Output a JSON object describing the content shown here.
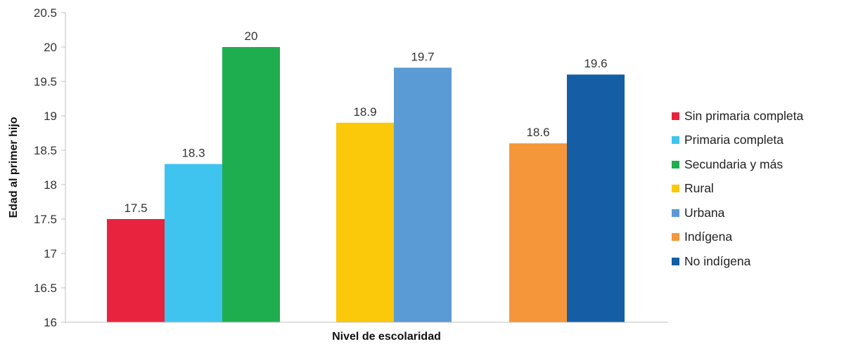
{
  "chart_data": {
    "type": "bar",
    "title": "",
    "xlabel": "Nivel de escolaridad",
    "ylabel": "Edad al primer hijo",
    "ylim": [
      16,
      20.5
    ],
    "yticks": [
      "16",
      "16.5",
      "17",
      "17.5",
      "18",
      "18.5",
      "19",
      "19.5",
      "20",
      "20.5"
    ],
    "grid": false,
    "legend_position": "right",
    "groups": [
      {
        "bars": [
          {
            "name": "Sin primaria completa",
            "value": 17.5,
            "label": "17.5",
            "color": "#e8233e"
          },
          {
            "name": "Primaria completa",
            "value": 18.3,
            "label": "18.3",
            "color": "#3ec4ef"
          },
          {
            "name": "Secundaria y más",
            "value": 20,
            "label": "20",
            "color": "#1fae4f"
          }
        ]
      },
      {
        "bars": [
          {
            "name": "Rural",
            "value": 18.9,
            "label": "18.9",
            "color": "#fbc80a"
          },
          {
            "name": "Urbana",
            "value": 19.7,
            "label": "19.7",
            "color": "#5b9bd5"
          }
        ]
      },
      {
        "bars": [
          {
            "name": "Indígena",
            "value": 18.6,
            "label": "18.6",
            "color": "#f6963a"
          },
          {
            "name": "No indígena",
            "value": 19.6,
            "label": "19.6",
            "color": "#155ea5"
          }
        ]
      }
    ],
    "legend": [
      {
        "label": "Sin primaria completa",
        "color": "#e8233e"
      },
      {
        "label": "Primaria completa",
        "color": "#3ec4ef"
      },
      {
        "label": "Secundaria y más",
        "color": "#1fae4f"
      },
      {
        "label": "Rural",
        "color": "#fbc80a"
      },
      {
        "label": "Urbana",
        "color": "#5b9bd5"
      },
      {
        "label": "Indígena",
        "color": "#f6963a"
      },
      {
        "label": "No indígena",
        "color": "#155ea5"
      }
    ]
  }
}
